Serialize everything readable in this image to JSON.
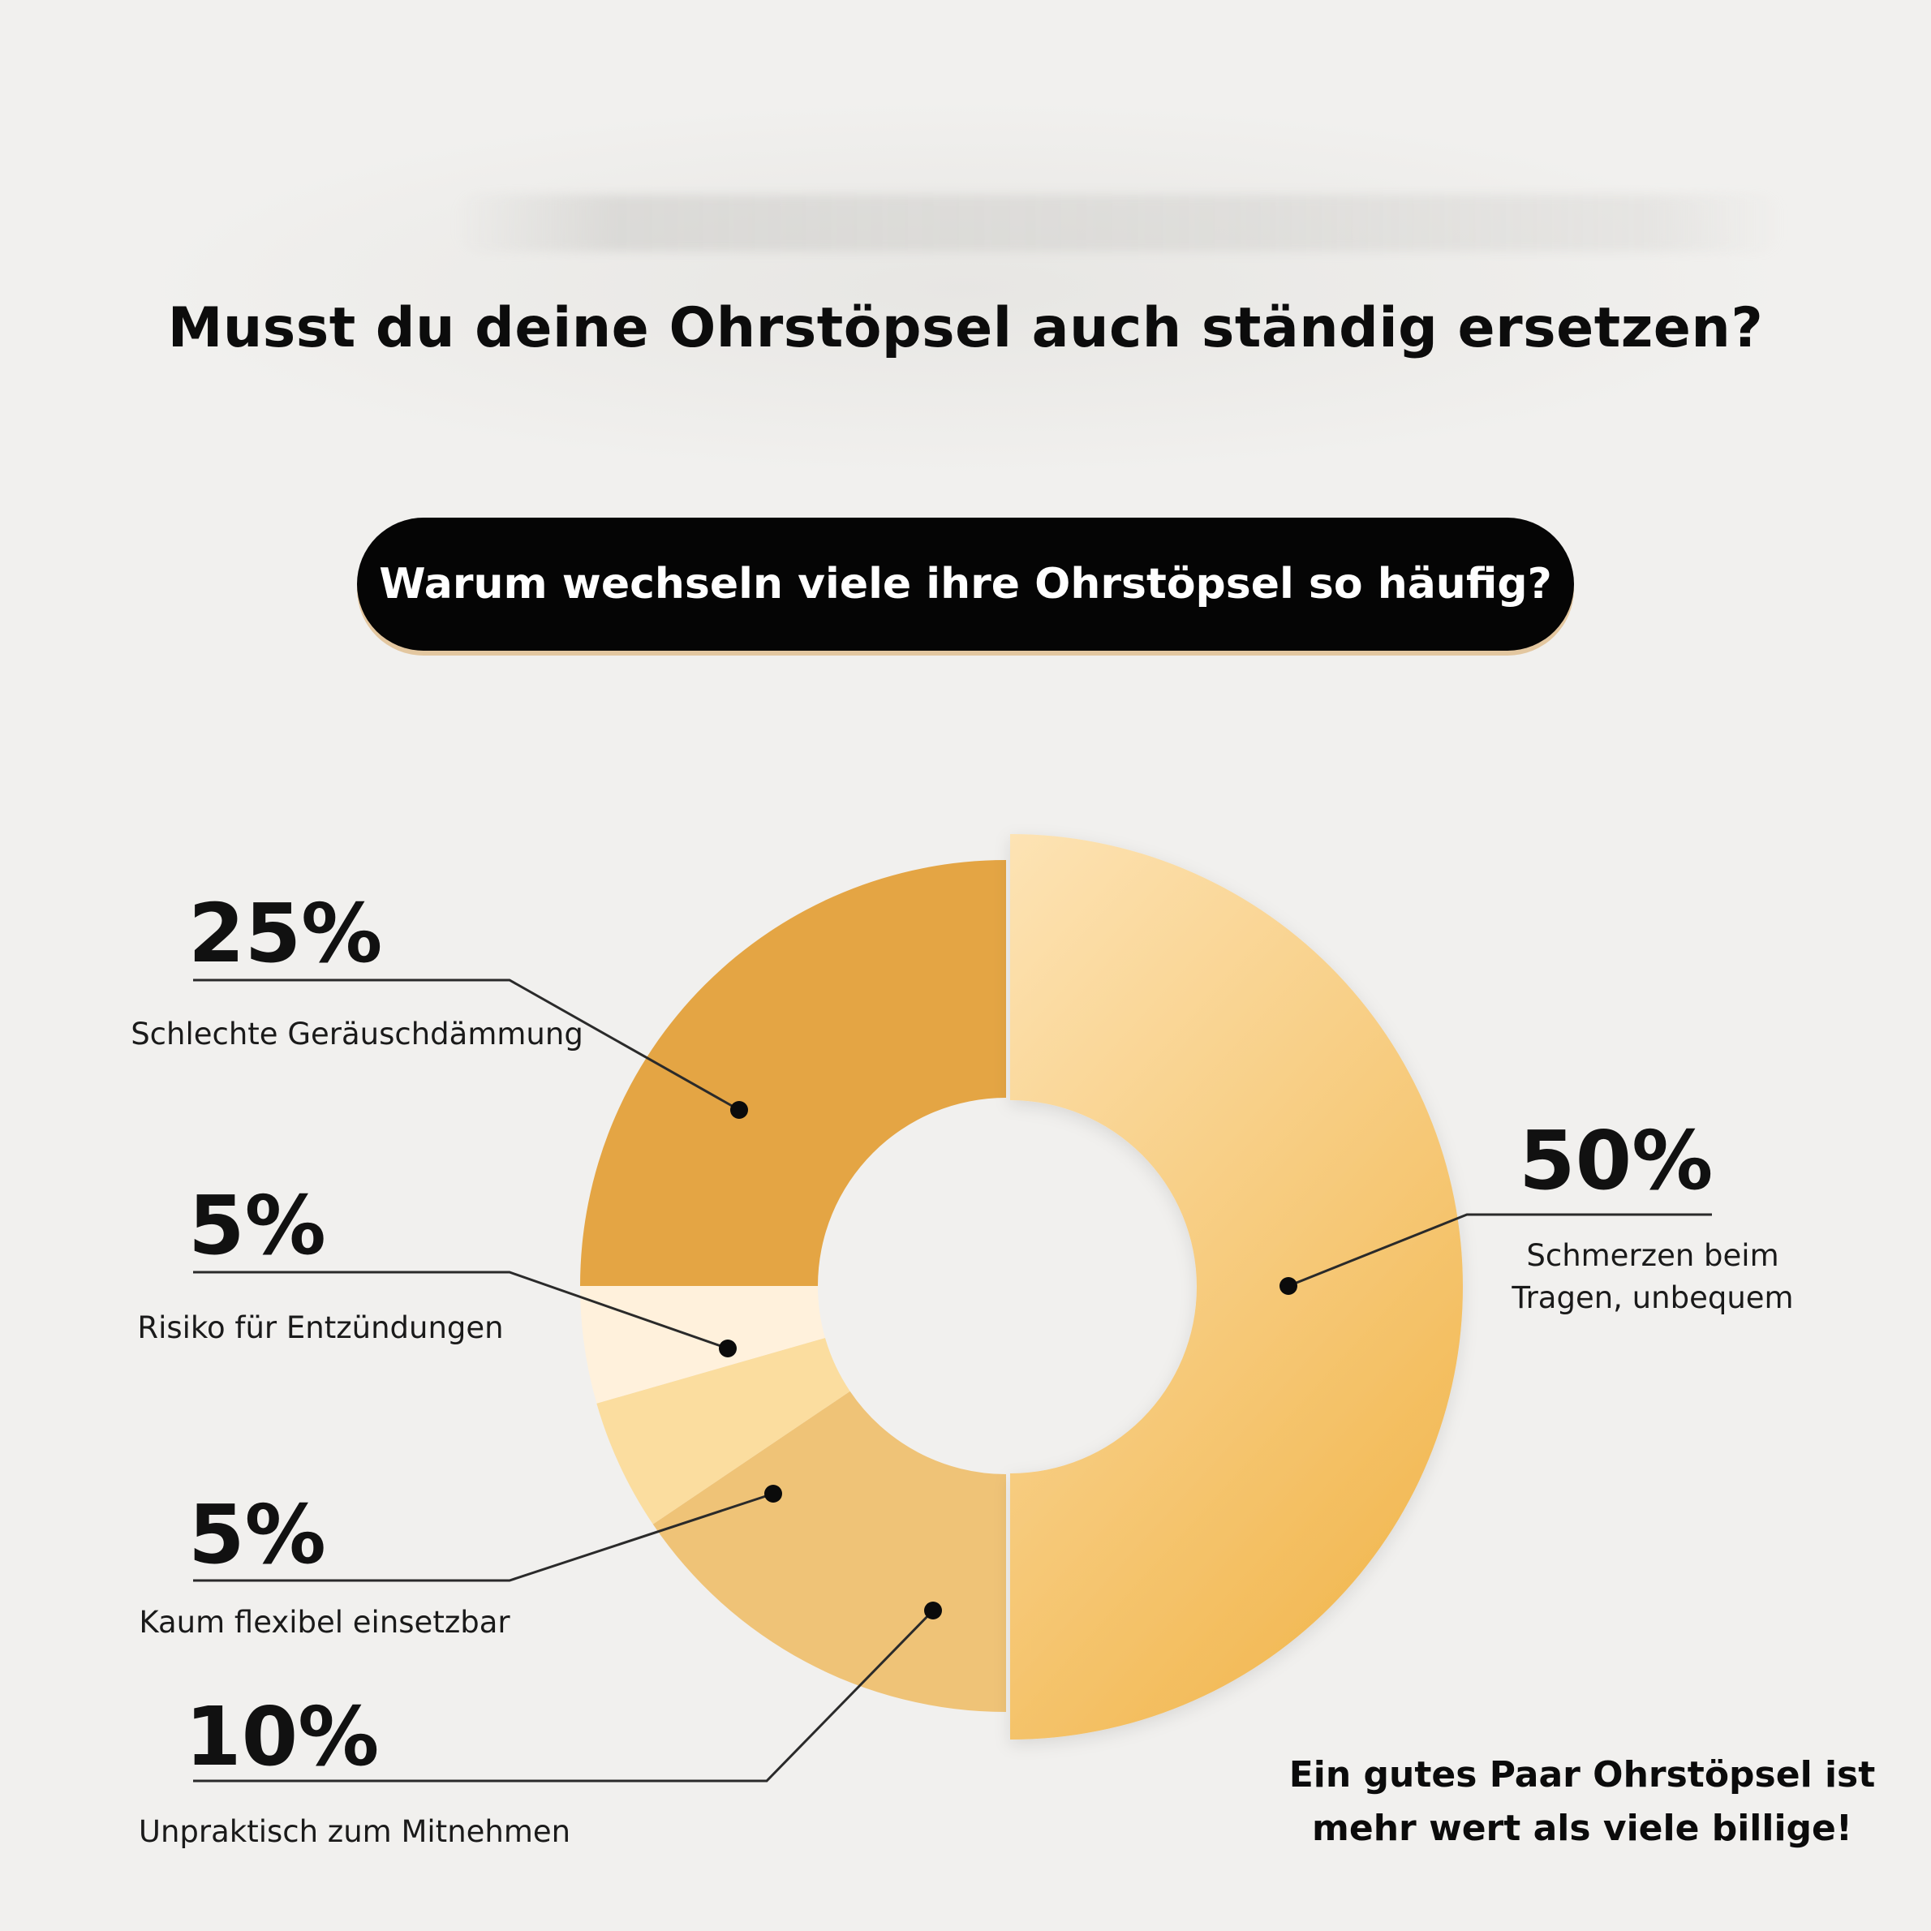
{
  "headline": "Musst du deine Ohrstöpsel auch ständig ersetzen?",
  "banner": "Warum wechseln viele ihre Ohrstöpsel so häufig?",
  "footer": {
    "line1": "Ein gutes Paar Ohrstöpsel ist",
    "line2": "mehr wert als viele billige!"
  },
  "chart_data": {
    "type": "pie",
    "style": "donut",
    "title": "",
    "slices": [
      {
        "label": "Schmerzen beim Tragen, unbequem",
        "label_lines": [
          "Schmerzen beim",
          "Tragen, unbequem"
        ],
        "value": 50,
        "pct_text": "50%",
        "color": "#f6c56d",
        "color_light": "#fde3b4"
      },
      {
        "label": "Unpraktisch zum Mitnehmen",
        "label_lines": [
          "Unpraktisch zum Mitnehmen"
        ],
        "value": 10,
        "pct_text": "10%",
        "color": "#efc377"
      },
      {
        "label": "Kaum flexibel einsetzbar",
        "label_lines": [
          "Kaum flexibel einsetzbar"
        ],
        "value": 5,
        "pct_text": "5%",
        "color": "#fbdd9f"
      },
      {
        "label": "Risiko für Entzündungen",
        "label_lines": [
          "Risiko für Entzündungen"
        ],
        "value": 5,
        "pct_text": "5%",
        "color": "#fff1dc"
      },
      {
        "label": "Schlechte Geräuschdämmung",
        "label_lines": [
          "Schlechte Geräuschdämmung"
        ],
        "value": 25,
        "pct_text": "25%",
        "color": "#e4a544"
      }
    ]
  }
}
